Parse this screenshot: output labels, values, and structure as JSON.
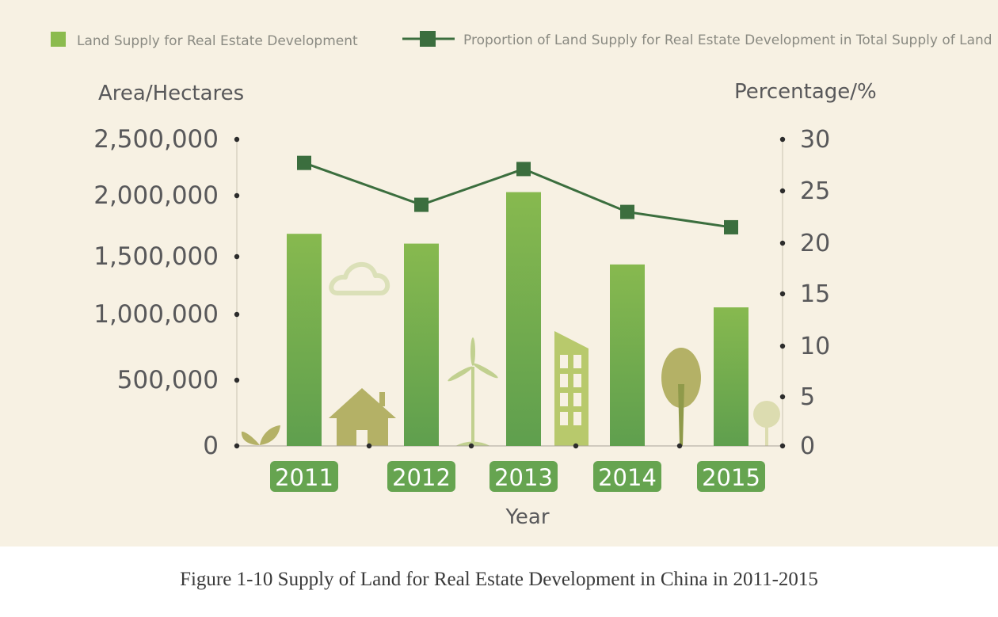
{
  "chart_data": {
    "type": "bar",
    "categories": [
      "2011",
      "2012",
      "2013",
      "2014",
      "2015"
    ],
    "series": [
      {
        "name": "Land Supply for Real Estate Development",
        "axis": "left",
        "values": [
          1730000,
          1650000,
          2070000,
          1480000,
          1130000
        ],
        "color": "#7bb04f"
      },
      {
        "name": "Proportion of Land Supply for Real Estate Development in Total Supply of Land",
        "axis": "right",
        "type": "line",
        "values": [
          27.7,
          23.6,
          27.1,
          22.9,
          21.4
        ],
        "color": "#3b6e3e"
      }
    ],
    "ylabel_left": "Area/Hectares",
    "ylabel_right": "Percentage/%",
    "xlabel": "Year",
    "yticks_left": [
      "0",
      "500,000",
      "1,000,000",
      "1,500,000",
      "2,000,000",
      "2,500,000"
    ],
    "yticks_right": [
      "0",
      "5",
      "10",
      "15",
      "20",
      "25",
      "30"
    ],
    "ylim_left": [
      0,
      2500000
    ],
    "ylim_right": [
      0,
      30
    ],
    "legend_position": "top",
    "grid": false
  },
  "caption": "Figure 1-10 Supply of Land for Real Estate Development in China in 2011-2015",
  "colors": {
    "background": "#f7f1e3",
    "bar_top": "#87b94f",
    "bar_bottom": "#5f9f4e",
    "line": "#3b6e3e",
    "year_badge": "#66a450",
    "decor": "#b4b166"
  }
}
